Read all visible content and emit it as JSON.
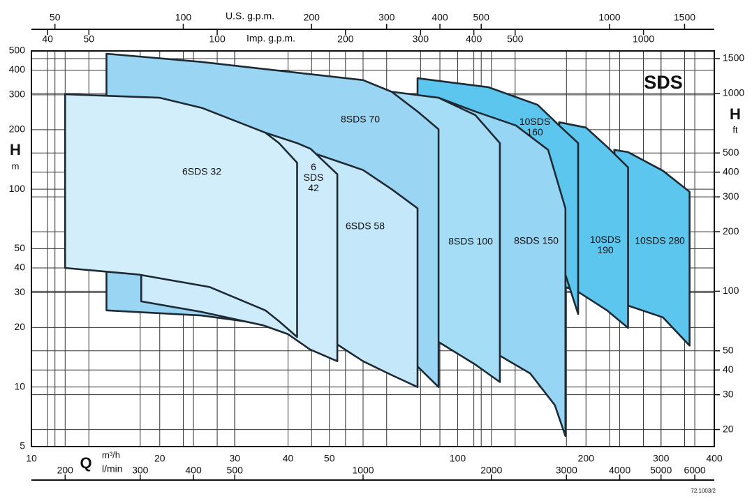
{
  "chart_data": {
    "type": "area-map",
    "title": "SDS",
    "code": "72.1003/2",
    "log": true,
    "grid": true,
    "xlabel": "Q",
    "xunit": "m³/h",
    "xlim": [
      10,
      400
    ],
    "xticks": [
      10,
      20,
      30,
      40,
      50,
      100,
      200,
      300,
      400
    ],
    "ylabel": "H",
    "yunit": "m",
    "ylim": [
      5,
      500
    ],
    "yticks": [
      5,
      10,
      20,
      30,
      40,
      50,
      100,
      200,
      300,
      400,
      500
    ],
    "y2label": "H",
    "y2unit": "ft",
    "y2lim": [
      16.4,
      1640
    ],
    "y2ticks": [
      20,
      30,
      40,
      50,
      100,
      200,
      300,
      400,
      500,
      1000,
      1500
    ],
    "axes": [
      {
        "label": "U.S. g.p.m.",
        "lim": [
          44.03,
          1761
        ],
        "ticks": [
          50,
          100,
          200,
          300,
          400,
          500,
          1000,
          1500
        ]
      },
      {
        "label": "Imp. g.p.m.",
        "lim": [
          36.66,
          1466
        ],
        "ticks": [
          40,
          50,
          100,
          200,
          300,
          400,
          500,
          1000
        ]
      },
      {
        "label": "l/min",
        "lim": [
          166.7,
          6667
        ],
        "ticks": [
          200,
          300,
          400,
          500,
          1000,
          2000,
          3000,
          4000,
          5000,
          6000
        ]
      }
    ],
    "series": [
      {
        "name": "10SDS 280",
        "color": "#5cc6ef",
        "x": [
          233,
          251,
          303,
          350,
          350,
          303,
          251
        ],
        "y": [
          158,
          154,
          124,
          97,
          16.2,
          22.5,
          25.8
        ]
      },
      {
        "name": "10SDS 190",
        "color": "#5cc6ef",
        "x": [
          173,
          200,
          224,
          251,
          251,
          224,
          191.7,
          179
        ],
        "y": [
          218,
          205,
          164,
          129,
          19.9,
          24.4,
          30.3,
          32
        ]
      },
      {
        "name": "10SDS 160",
        "color": "#5cc6ef",
        "x": [
          80.5,
          118,
          154,
          173,
          191.7,
          191.7,
          150,
          80.5
        ],
        "y": [
          364,
          328,
          267,
          210,
          171,
          23.4,
          120,
          200
        ]
      },
      {
        "name": "8SDS 150",
        "color": "#96d5f3",
        "x": [
          90.2,
          110,
          137,
          163,
          179,
          179,
          169,
          148,
          125.6,
          100
        ],
        "y": [
          290,
          247,
          210,
          158,
          80,
          5.65,
          8.1,
          11.7,
          14.4,
          14.8
        ]
      },
      {
        "name": "8SDS 100",
        "color": "#a6ddf6",
        "x": [
          70,
          90.2,
          110,
          125.6,
          125.6,
          110,
          90.2,
          70
        ],
        "y": [
          311,
          290,
          237,
          171,
          10.6,
          13,
          16.9,
          16.9
        ]
      },
      {
        "name": "8SDS 70",
        "color": "#9ad6f3",
        "x": [
          15,
          25,
          60,
          70,
          80.5,
          90.2,
          90.2,
          80.5,
          60,
          42,
          25,
          15
        ],
        "y": [
          484,
          440,
          356,
          311,
          247,
          201,
          10,
          12.7,
          15.5,
          19.8,
          23,
          24.4
        ]
      },
      {
        "name": "6SDS 58",
        "color": "#c4e7f9",
        "x": [
          18.1,
          38,
          45.2,
          60,
          70,
          80.5,
          80.5,
          70,
          60,
          52,
          42,
          30,
          18.1
        ],
        "y": [
          200,
          171,
          154,
          125,
          100,
          80,
          10,
          11.5,
          13.5,
          16.5,
          19.9,
          25.5,
          27.1
        ]
      },
      {
        "name": "6 SDS 42",
        "color": "#cdebfa",
        "x": [
          18.1,
          35.4,
          42,
          45.2,
          52.2,
          52.2,
          45,
          40,
          35,
          25,
          18.1
        ],
        "y": [
          250,
          193,
          171,
          160,
          119,
          13.5,
          15.5,
          18.5,
          20.5,
          24,
          27.1
        ]
      },
      {
        "name": "6SDS 32",
        "color": "#d3eefb",
        "x": [
          12,
          20,
          25.2,
          35.4,
          38.1,
          42,
          42,
          38.1,
          35.4,
          26.2,
          17.9,
          12
        ],
        "y": [
          302,
          290,
          257,
          193,
          171,
          136,
          17.9,
          21.5,
          24.4,
          32,
          37,
          40
        ]
      }
    ]
  }
}
